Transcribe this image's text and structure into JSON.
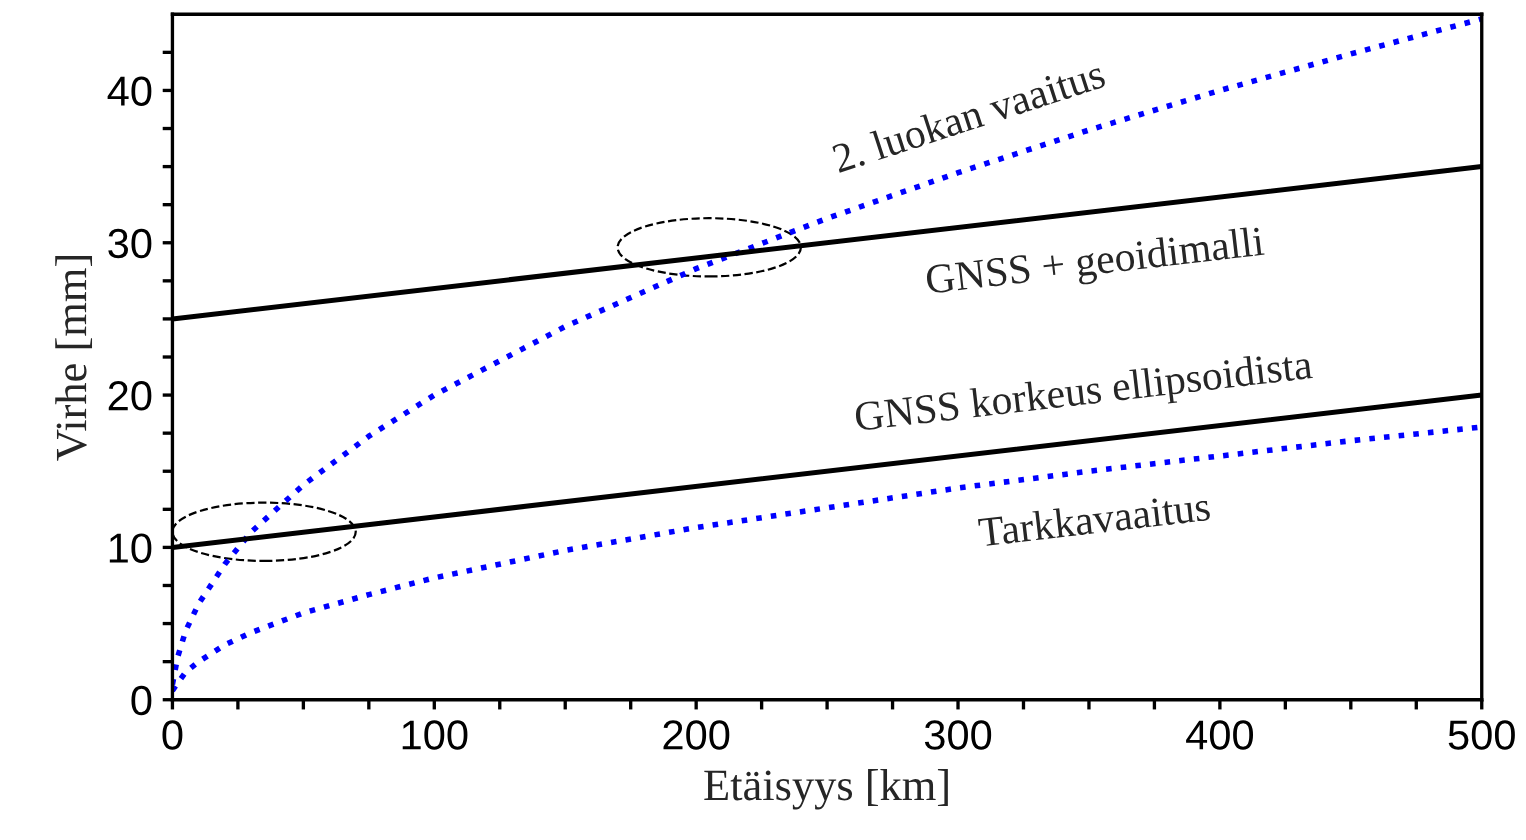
{
  "chart_data": {
    "type": "line",
    "xlabel": "Etäisyys [km]",
    "ylabel": "Virhe [mm]",
    "xlim": [
      0,
      500
    ],
    "ylim": [
      0,
      45
    ],
    "xticks": [
      0,
      {
        "value": 25,
        "label": null
      },
      100,
      {
        "value": 50,
        "label": null
      },
      {
        "value": 75,
        "label": null
      },
      {
        "value": 125,
        "label": null
      },
      {
        "value": 150,
        "label": null
      },
      {
        "value": 175,
        "label": null
      },
      200,
      {
        "value": 225,
        "label": null
      },
      {
        "value": 250,
        "label": null
      },
      {
        "value": 275,
        "label": null
      },
      300,
      {
        "value": 325,
        "label": null
      },
      {
        "value": 350,
        "label": null
      },
      {
        "value": 375,
        "label": null
      },
      400,
      {
        "value": 425,
        "label": null
      },
      {
        "value": 450,
        "label": null
      },
      {
        "value": 475,
        "label": null
      },
      500
    ],
    "yticks": [
      0,
      {
        "value": 2.5,
        "label": null
      },
      {
        "value": 5,
        "label": null
      },
      {
        "value": 7.5,
        "label": null
      },
      10,
      {
        "value": 12.5,
        "label": null
      },
      {
        "value": 15,
        "label": null
      },
      {
        "value": 17.5,
        "label": null
      },
      20,
      {
        "value": 22.5,
        "label": null
      },
      {
        "value": 25,
        "label": null
      },
      {
        "value": 27.5,
        "label": null
      },
      30,
      {
        "value": 32.5,
        "label": null
      },
      {
        "value": 35,
        "label": null
      },
      {
        "value": 37.5,
        "label": null
      },
      40,
      {
        "value": 42.5,
        "label": null
      }
    ],
    "grid": false,
    "legend": false,
    "series": [
      {
        "name": "2. luokan vaaitus",
        "color": "#0000ff",
        "line_style": "dotted",
        "x": [
          0,
          2,
          5,
          10,
          20,
          30,
          50,
          75,
          100,
          150,
          200,
          250,
          300,
          350,
          400,
          450,
          500
        ],
        "values": [
          1,
          2.8,
          4.5,
          6.3,
          8.9,
          11,
          14.1,
          17.3,
          20,
          24.5,
          28.3,
          31.6,
          34.6,
          37.4,
          40,
          42.4,
          44.7
        ]
      },
      {
        "name": "GNSS + geoidimalli",
        "color": "#000000",
        "line_style": "solid",
        "x": [
          0,
          500
        ],
        "values": [
          25,
          35
        ]
      },
      {
        "name": "GNSS korkeus ellipsoidista",
        "color": "#000000",
        "line_style": "solid",
        "x": [
          0,
          500
        ],
        "values": [
          10,
          20
        ]
      },
      {
        "name": "Tarkkavaaitus",
        "color": "#0000ff",
        "line_style": "dotted",
        "x": [
          0,
          2,
          5,
          10,
          20,
          30,
          50,
          75,
          100,
          150,
          200,
          250,
          300,
          350,
          400,
          450,
          500
        ],
        "values": [
          0.6,
          1.1,
          1.8,
          2.5,
          3.6,
          4.4,
          5.7,
          6.9,
          8,
          9.8,
          11.3,
          12.6,
          13.9,
          15,
          16,
          17,
          17.9
        ]
      }
    ]
  }
}
